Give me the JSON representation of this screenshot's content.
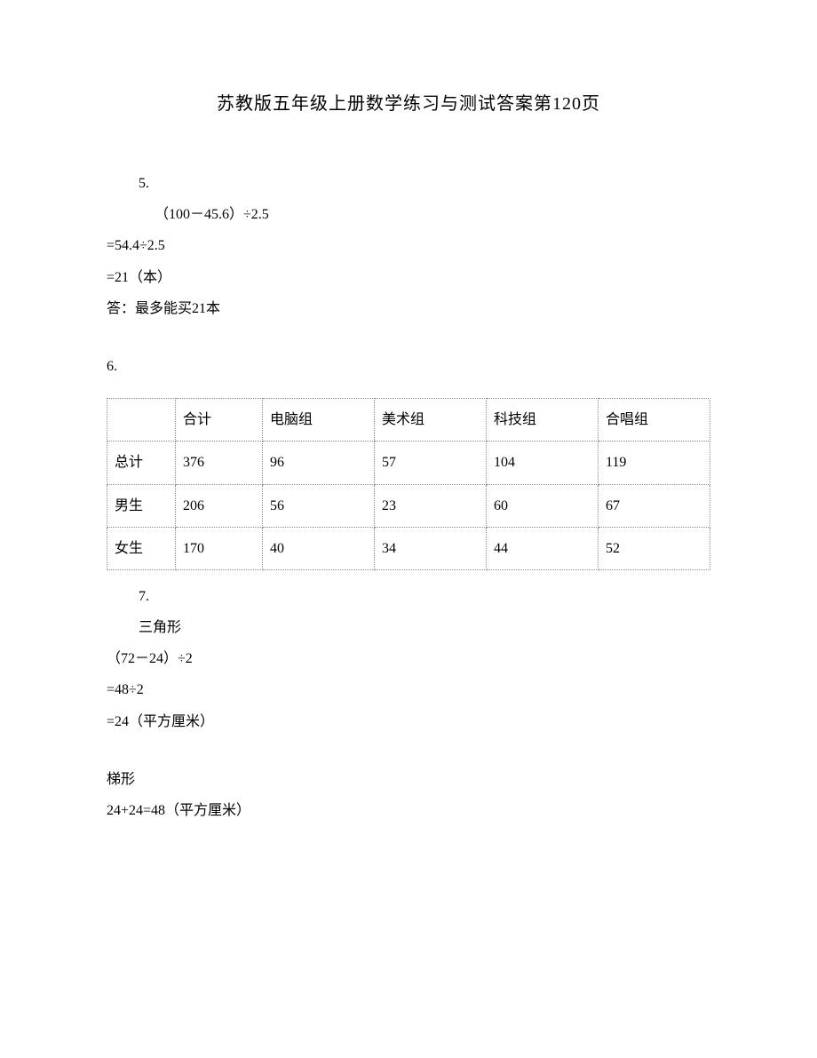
{
  "title": "苏教版五年级上册数学练习与测试答案第120页",
  "q5": {
    "label": "5.",
    "line1": "（100－45.6）÷2.5",
    "line2": "=54.4÷2.5",
    "line3": "=21（本）",
    "answer": "答：最多能买21本"
  },
  "q6": {
    "label": "6.",
    "table": {
      "headers": [
        "",
        "合计",
        "电脑组",
        "美术组",
        "科技组",
        "合唱组"
      ],
      "rows": [
        [
          "总计",
          "376",
          "96",
          "57",
          "104",
          "119"
        ],
        [
          "男生",
          "206",
          "56",
          "23",
          "60",
          "67"
        ],
        [
          "女生",
          "170",
          "40",
          "34",
          "44",
          "52"
        ]
      ]
    }
  },
  "q7": {
    "label": "7.",
    "subtitle1": "三角形",
    "line1": "（72－24）÷2",
    "line2": "=48÷2",
    "line3": "=24（平方厘米）",
    "subtitle2": "梯形",
    "line4": "24+24=48（平方厘米）"
  }
}
